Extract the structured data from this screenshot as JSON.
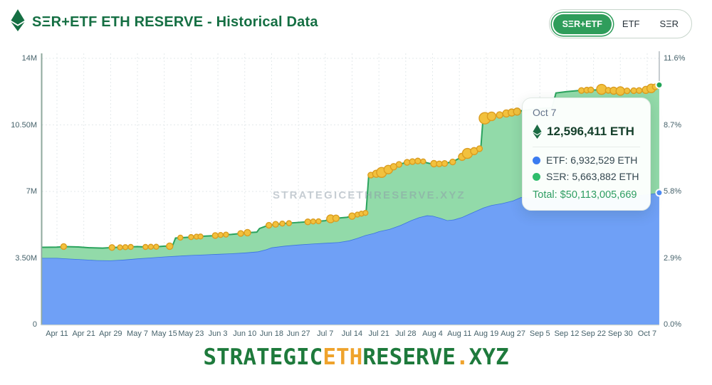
{
  "header": {
    "title": "SΞR+ETF ETH RESERVE - Historical Data"
  },
  "toggle": {
    "options": [
      "SΞR+ETF",
      "ETF",
      "SΞR"
    ],
    "selected": "SΞR+ETF"
  },
  "watermark": {
    "text": "STRATEGICETHRESERVE.XYZ"
  },
  "tooltip": {
    "date": "Oct 7",
    "total": "12,596,411 ETH",
    "etf_row": "ETF: 6,932,529 ETH",
    "ser_row": "SΞR: 5,663,882 ETH",
    "total_usd": "Total: $50,113,005,669"
  },
  "footer": {
    "parts": [
      {
        "text": "STRATEGIC",
        "color": "#1E7A3C"
      },
      {
        "text": "ETH",
        "color": "#EFA32C"
      },
      {
        "text": "RESERVE",
        "color": "#1E7A3C"
      },
      {
        "text": ".",
        "color": "#EFA32C"
      },
      {
        "text": "XYZ",
        "color": "#1E7A3C"
      }
    ]
  },
  "colors": {
    "title_green": "#156F43",
    "button_green": "#2F9D5B",
    "etf_fill": "#6FA0F6",
    "etf_line": "#3B74DE",
    "ser_fill": "#92DAA9",
    "ser_line": "#2AA35D",
    "dot_fill": "#F2C13D",
    "dot_stroke": "#DB9D20",
    "grid": "#E3E9EB",
    "axis_line": "#8FA89D",
    "bottom_line": "#C9D3CF",
    "crosshair": "#B3BAC0",
    "end_dot_total": "#21A457",
    "end_dot_etf": "#4D8CF5",
    "tooltip_etf_dot": "#3B7BF0",
    "tooltip_ser_dot": "#2EBD6B"
  },
  "chart_data": {
    "type": "area",
    "stacked": true,
    "units": "millions of ETH",
    "x_ticks": [
      "Apr 11",
      "Apr 21",
      "Apr 29",
      "May 7",
      "May 15",
      "May 23",
      "Jun 3",
      "Jun 10",
      "Jun 18",
      "Jun 27",
      "Jul 7",
      "Jul 14",
      "Jul 21",
      "Jul 28",
      "Aug 4",
      "Aug 11",
      "Aug 19",
      "Aug 27",
      "Sep 5",
      "Sep 12",
      "Sep 22",
      "Sep 30",
      "Oct 7"
    ],
    "y_left": {
      "labels": [
        "0",
        "3.50M",
        "7M",
        "10.50M",
        "14M"
      ],
      "values": [
        0,
        3.5,
        7,
        10.5,
        14
      ],
      "max": 14
    },
    "y_right": {
      "labels": [
        "0.0%",
        "2.9%",
        "5.8%",
        "8.7%",
        "11.6%"
      ],
      "values": [
        0,
        2.9,
        5.8,
        8.7,
        11.6
      ],
      "max": 11.6
    },
    "legend_position": "none",
    "grid": "dotted",
    "series": [
      {
        "name": "SΞR+ETF total",
        "points": [
          [
            -0.55,
            4.06
          ],
          [
            0,
            4.07
          ],
          [
            0.3,
            4.1
          ],
          [
            0.8,
            4.08
          ],
          [
            1.2,
            4.04
          ],
          [
            1.7,
            4.02
          ],
          [
            2.1,
            4.05
          ],
          [
            2.6,
            4.08
          ],
          [
            3.0,
            4.1
          ],
          [
            3.3,
            4.08
          ],
          [
            3.7,
            4.09
          ],
          [
            4.0,
            4.12
          ],
          [
            4.3,
            4.12
          ],
          [
            4.42,
            4.55
          ],
          [
            4.8,
            4.58
          ],
          [
            5.1,
            4.61
          ],
          [
            5.4,
            4.64
          ],
          [
            5.8,
            4.67
          ],
          [
            6.1,
            4.71
          ],
          [
            6.5,
            4.74
          ],
          [
            6.8,
            4.78
          ],
          [
            7.1,
            4.83
          ],
          [
            7.45,
            4.86
          ],
          [
            7.55,
            5.05
          ],
          [
            7.8,
            5.18
          ],
          [
            8.1,
            5.26
          ],
          [
            8.5,
            5.32
          ],
          [
            8.9,
            5.36
          ],
          [
            9.3,
            5.4
          ],
          [
            9.7,
            5.43
          ],
          [
            10.0,
            5.46
          ],
          [
            10.15,
            5.55
          ],
          [
            10.5,
            5.6
          ],
          [
            10.8,
            5.64
          ],
          [
            11.0,
            5.7
          ],
          [
            11.2,
            5.78
          ],
          [
            11.45,
            5.86
          ],
          [
            11.52,
            5.88
          ],
          [
            11.62,
            7.82
          ],
          [
            11.8,
            7.9
          ],
          [
            12.0,
            7.97
          ],
          [
            12.2,
            8.05
          ],
          [
            12.45,
            8.22
          ],
          [
            12.7,
            8.4
          ],
          [
            13.0,
            8.52
          ],
          [
            13.3,
            8.58
          ],
          [
            13.6,
            8.57
          ],
          [
            13.9,
            8.47
          ],
          [
            14.2,
            8.45
          ],
          [
            14.5,
            8.48
          ],
          [
            14.8,
            8.6
          ],
          [
            15.1,
            8.82
          ],
          [
            15.4,
            9.05
          ],
          [
            15.7,
            9.22
          ],
          [
            15.8,
            9.3
          ],
          [
            15.88,
            10.82
          ],
          [
            16.1,
            10.92
          ],
          [
            16.4,
            11.0
          ],
          [
            16.8,
            11.12
          ],
          [
            17.2,
            11.22
          ],
          [
            17.6,
            11.3
          ],
          [
            18.0,
            11.36
          ],
          [
            18.45,
            11.4
          ],
          [
            18.6,
            12.18
          ],
          [
            19.0,
            12.25
          ],
          [
            19.4,
            12.3
          ],
          [
            19.8,
            12.33
          ],
          [
            20.1,
            12.34
          ],
          [
            20.4,
            12.3
          ],
          [
            20.7,
            12.28
          ],
          [
            21.0,
            12.27
          ],
          [
            21.3,
            12.29
          ],
          [
            21.6,
            12.31
          ],
          [
            21.9,
            12.33
          ],
          [
            22.15,
            12.4
          ],
          [
            22.45,
            12.6
          ]
        ],
        "last_value_eth": "12,596,411"
      },
      {
        "name": "ETF",
        "points": [
          [
            -0.55,
            3.5
          ],
          [
            0,
            3.5
          ],
          [
            0.5,
            3.46
          ],
          [
            1.0,
            3.42
          ],
          [
            1.5,
            3.38
          ],
          [
            2.0,
            3.37
          ],
          [
            2.5,
            3.41
          ],
          [
            3.0,
            3.47
          ],
          [
            3.5,
            3.52
          ],
          [
            4.0,
            3.57
          ],
          [
            4.5,
            3.61
          ],
          [
            5.0,
            3.65
          ],
          [
            5.5,
            3.68
          ],
          [
            6.0,
            3.71
          ],
          [
            6.5,
            3.74
          ],
          [
            7.0,
            3.78
          ],
          [
            7.5,
            3.84
          ],
          [
            7.8,
            3.95
          ],
          [
            8.0,
            4.05
          ],
          [
            8.5,
            4.14
          ],
          [
            9.0,
            4.2
          ],
          [
            9.5,
            4.25
          ],
          [
            10.0,
            4.29
          ],
          [
            10.5,
            4.33
          ],
          [
            10.9,
            4.42
          ],
          [
            11.2,
            4.55
          ],
          [
            11.5,
            4.7
          ],
          [
            11.8,
            4.8
          ],
          [
            12.0,
            4.9
          ],
          [
            12.4,
            5.02
          ],
          [
            12.8,
            5.22
          ],
          [
            13.2,
            5.48
          ],
          [
            13.5,
            5.64
          ],
          [
            13.8,
            5.74
          ],
          [
            14.0,
            5.72
          ],
          [
            14.3,
            5.6
          ],
          [
            14.55,
            5.48
          ],
          [
            14.8,
            5.52
          ],
          [
            15.1,
            5.65
          ],
          [
            15.5,
            5.9
          ],
          [
            15.9,
            6.15
          ],
          [
            16.2,
            6.28
          ],
          [
            16.6,
            6.38
          ],
          [
            17.0,
            6.52
          ],
          [
            17.3,
            6.7
          ],
          [
            17.7,
            6.62
          ],
          [
            18.2,
            6.58
          ],
          [
            18.7,
            6.62
          ],
          [
            19.2,
            6.66
          ],
          [
            19.7,
            6.68
          ],
          [
            20.2,
            6.7
          ],
          [
            20.7,
            6.73
          ],
          [
            21.2,
            6.76
          ],
          [
            21.7,
            6.8
          ],
          [
            22.1,
            6.86
          ],
          [
            22.45,
            6.93
          ]
        ],
        "last_value_eth": "6,932,529"
      },
      {
        "name": "SΞR",
        "derived": "total minus ETF",
        "last_value_eth": "5,663,882"
      }
    ],
    "purchase_dots": [
      [
        0.25,
        4.1,
        4
      ],
      [
        2.05,
        4.05,
        4
      ],
      [
        2.35,
        4.06,
        3.5
      ],
      [
        2.55,
        4.07,
        3.5
      ],
      [
        2.75,
        4.08,
        3.5
      ],
      [
        3.3,
        4.08,
        3.5
      ],
      [
        3.5,
        4.09,
        3.5
      ],
      [
        3.7,
        4.09,
        3.5
      ],
      [
        4.2,
        4.12,
        4.5
      ],
      [
        4.6,
        4.57,
        3.5
      ],
      [
        5.0,
        4.6,
        3.5
      ],
      [
        5.2,
        4.62,
        3.5
      ],
      [
        5.35,
        4.63,
        3.5
      ],
      [
        5.9,
        4.68,
        4
      ],
      [
        6.1,
        4.71,
        3.5
      ],
      [
        6.3,
        4.73,
        3.5
      ],
      [
        6.85,
        4.79,
        4
      ],
      [
        7.1,
        4.83,
        4.5
      ],
      [
        7.9,
        5.22,
        4
      ],
      [
        8.15,
        5.27,
        4
      ],
      [
        8.4,
        5.31,
        3.5
      ],
      [
        8.65,
        5.33,
        3.5
      ],
      [
        9.35,
        5.4,
        4
      ],
      [
        9.55,
        5.42,
        3.5
      ],
      [
        9.75,
        5.43,
        3.5
      ],
      [
        10.2,
        5.56,
        5.5
      ],
      [
        10.4,
        5.59,
        4.5
      ],
      [
        11.0,
        5.7,
        4.5
      ],
      [
        11.2,
        5.78,
        3.5
      ],
      [
        11.35,
        5.83,
        3.5
      ],
      [
        11.5,
        5.87,
        3.5
      ],
      [
        11.7,
        7.86,
        4
      ],
      [
        11.9,
        7.93,
        5
      ],
      [
        12.1,
        8.0,
        7
      ],
      [
        12.35,
        8.15,
        6
      ],
      [
        12.55,
        8.3,
        4.5
      ],
      [
        12.75,
        8.42,
        4
      ],
      [
        13.05,
        8.53,
        4
      ],
      [
        13.25,
        8.57,
        4
      ],
      [
        13.45,
        8.6,
        4
      ],
      [
        13.65,
        8.58,
        3.5
      ],
      [
        14.05,
        8.46,
        4.5
      ],
      [
        14.25,
        8.45,
        4
      ],
      [
        14.45,
        8.47,
        4
      ],
      [
        14.75,
        8.55,
        4
      ],
      [
        15.1,
        8.82,
        5
      ],
      [
        15.3,
        9.0,
        7
      ],
      [
        15.55,
        9.12,
        5
      ],
      [
        15.75,
        9.25,
        4
      ],
      [
        15.95,
        10.85,
        8
      ],
      [
        16.2,
        10.95,
        6
      ],
      [
        16.5,
        11.02,
        4.5
      ],
      [
        16.75,
        11.1,
        5
      ],
      [
        16.95,
        11.15,
        5
      ],
      [
        17.15,
        11.2,
        5
      ],
      [
        19.55,
        12.31,
        4
      ],
      [
        19.75,
        12.33,
        4
      ],
      [
        19.9,
        12.34,
        4
      ],
      [
        20.3,
        12.37,
        7
      ],
      [
        20.55,
        12.32,
        4
      ],
      [
        20.75,
        12.3,
        5
      ],
      [
        21.0,
        12.28,
        6
      ],
      [
        21.25,
        12.29,
        4
      ],
      [
        21.5,
        12.3,
        4
      ],
      [
        21.7,
        12.31,
        4
      ],
      [
        21.95,
        12.34,
        5
      ],
      [
        22.15,
        12.42,
        6
      ],
      [
        22.3,
        12.5,
        4
      ]
    ]
  }
}
